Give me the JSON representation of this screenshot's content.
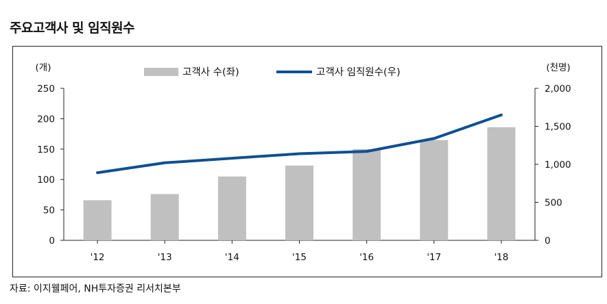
{
  "header": {
    "title": "주요고객사 및 임직원수"
  },
  "footer": {
    "source": "자료: 이지웰페어, NH투자증권 리서치본부"
  },
  "chart_data": {
    "type": "bar",
    "categories": [
      "'12",
      "'13",
      "'14",
      "'15",
      "'16",
      "'17",
      "'18"
    ],
    "left_unit": "(개)",
    "right_unit": "(천명)",
    "ylim_left": [
      0,
      250
    ],
    "ylim_right": [
      0,
      2000
    ],
    "yticks_left": [
      "0",
      "50",
      "100",
      "150",
      "200",
      "250"
    ],
    "yticks_right": [
      "0",
      "500",
      "1,000",
      "1,500",
      "2,000"
    ],
    "grid": false,
    "legend_position": "top-center",
    "series": [
      {
        "name": "고객사 수(좌)",
        "type": "bar",
        "axis": "left",
        "color": "#c0c0c0",
        "values": [
          66,
          76,
          105,
          123,
          150,
          165,
          186
        ]
      },
      {
        "name": "고객사 임직원수(우)",
        "type": "line",
        "axis": "right",
        "color": "#0e4f94",
        "values": [
          890,
          1020,
          1080,
          1140,
          1170,
          1340,
          1650
        ]
      }
    ]
  }
}
